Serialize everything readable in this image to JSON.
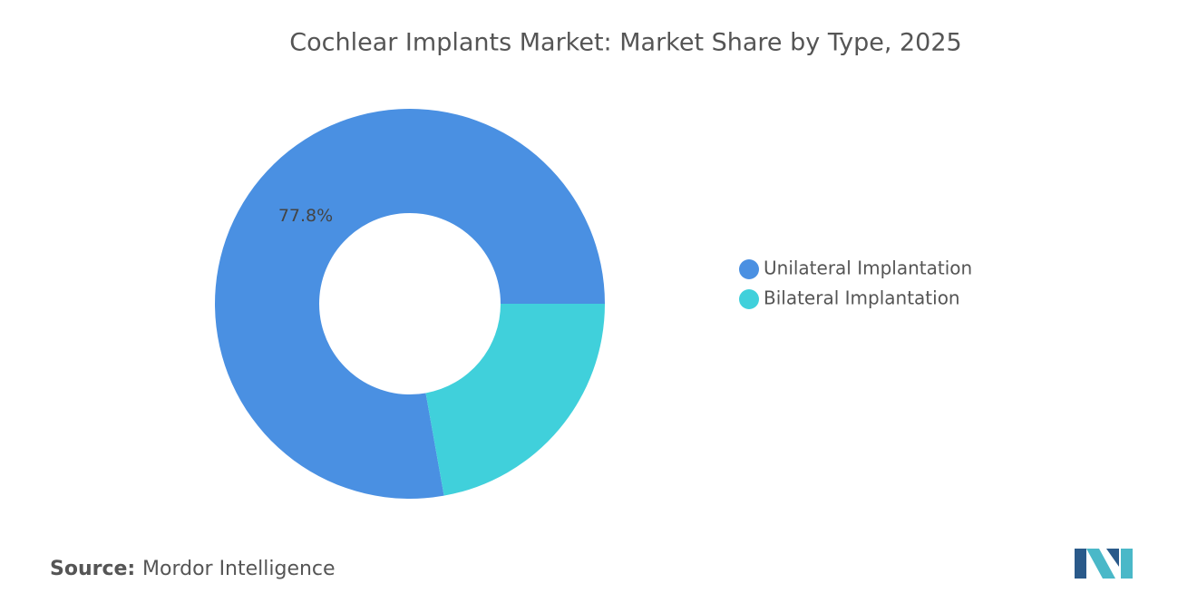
{
  "chart_data": {
    "type": "donut",
    "title": "Cochlear Implants Market: Market Share by Type, 2025",
    "categories": [
      "Unilateral Implantation",
      "Bilateral Implantation"
    ],
    "values": [
      77.8,
      22.2
    ],
    "value_labels": [
      "77.8%",
      null
    ],
    "colors": [
      "#4a90e2",
      "#40d0db"
    ],
    "legend_position": "right"
  },
  "source": {
    "label": "Source:",
    "text": "Mordor Intelligence"
  }
}
